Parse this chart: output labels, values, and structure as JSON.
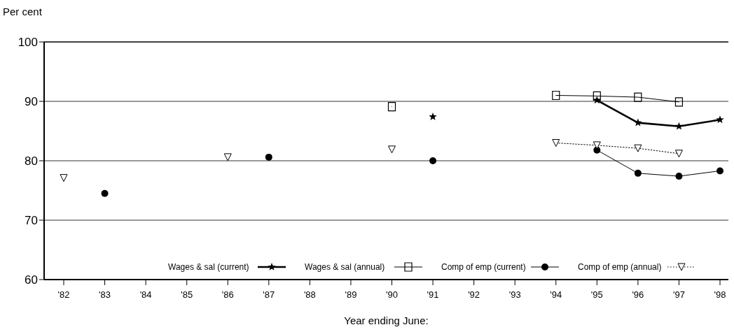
{
  "chart_data": {
    "type": "line",
    "ylabel": "Per cent",
    "xlabel": "Year ending June:",
    "categories": [
      "'82",
      "'83",
      "'84",
      "'85",
      "'86",
      "'87",
      "'88",
      "'89",
      "'90",
      "'91",
      "'92",
      "'93",
      "'94",
      "'95",
      "'96",
      "'97",
      "'98"
    ],
    "series": [
      {
        "name": "Wages & sal (current)",
        "color": "#000000",
        "marker": "star",
        "line_style": "solid",
        "values": [
          null,
          null,
          null,
          null,
          null,
          null,
          null,
          null,
          null,
          87.4,
          null,
          null,
          null,
          90.2,
          86.4,
          85.8,
          86.9
        ]
      },
      {
        "name": "Wages & sal  (annual)",
        "color": "#000000",
        "marker": "square",
        "line_style": "solid",
        "values": [
          null,
          null,
          null,
          null,
          null,
          null,
          null,
          null,
          89.1,
          null,
          null,
          null,
          91.0,
          90.9,
          90.7,
          89.9,
          null
        ]
      },
      {
        "name": "Comp of emp (current)",
        "color": "#000000",
        "marker": "circle",
        "line_style": "solid",
        "values": [
          null,
          74.5,
          null,
          null,
          null,
          80.6,
          null,
          null,
          null,
          80.0,
          null,
          null,
          null,
          81.8,
          77.9,
          77.4,
          78.3
        ]
      },
      {
        "name": "Comp of emp (annual)",
        "color": "#000000",
        "marker": "triangle",
        "line_style": "dotted",
        "values": [
          77.1,
          null,
          null,
          null,
          80.6,
          null,
          null,
          null,
          81.9,
          null,
          null,
          null,
          83.0,
          82.6,
          82.1,
          81.2,
          null
        ]
      }
    ],
    "ylim": [
      60,
      100
    ],
    "yticks": [
      60,
      70,
      80,
      90,
      100
    ],
    "grid": "y",
    "legend": "bottom"
  }
}
